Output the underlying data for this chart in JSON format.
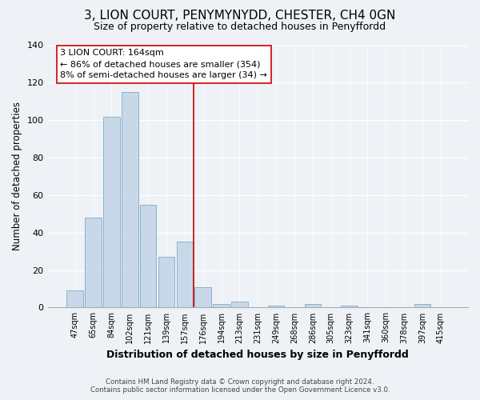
{
  "title": "3, LION COURT, PENYMYNYDD, CHESTER, CH4 0GN",
  "subtitle": "Size of property relative to detached houses in Penyffordd",
  "xlabel": "Distribution of detached houses by size in Penyffordd",
  "ylabel": "Number of detached properties",
  "bin_labels": [
    "47sqm",
    "65sqm",
    "84sqm",
    "102sqm",
    "121sqm",
    "139sqm",
    "157sqm",
    "176sqm",
    "194sqm",
    "213sqm",
    "231sqm",
    "249sqm",
    "268sqm",
    "286sqm",
    "305sqm",
    "323sqm",
    "341sqm",
    "360sqm",
    "378sqm",
    "397sqm",
    "415sqm"
  ],
  "bar_values": [
    9,
    48,
    102,
    115,
    55,
    27,
    35,
    11,
    2,
    3,
    0,
    1,
    0,
    2,
    0,
    1,
    0,
    0,
    0,
    2,
    0
  ],
  "bar_color": "#c8d8e8",
  "bar_edge_color": "#7aaac8",
  "vline_color": "#cc0000",
  "ylim": [
    0,
    140
  ],
  "yticks": [
    0,
    20,
    40,
    60,
    80,
    100,
    120,
    140
  ],
  "annotation_title": "3 LION COURT: 164sqm",
  "annotation_line1": "← 86% of detached houses are smaller (354)",
  "annotation_line2": "8% of semi-detached houses are larger (34) →",
  "annotation_box_color": "#ffffff",
  "annotation_box_edge": "#cc0000",
  "footer1": "Contains HM Land Registry data © Crown copyright and database right 2024.",
  "footer2": "Contains public sector information licensed under the Open Government Licence v3.0.",
  "bg_color": "#eef2f6",
  "plot_bg_color": "#eef2f6"
}
